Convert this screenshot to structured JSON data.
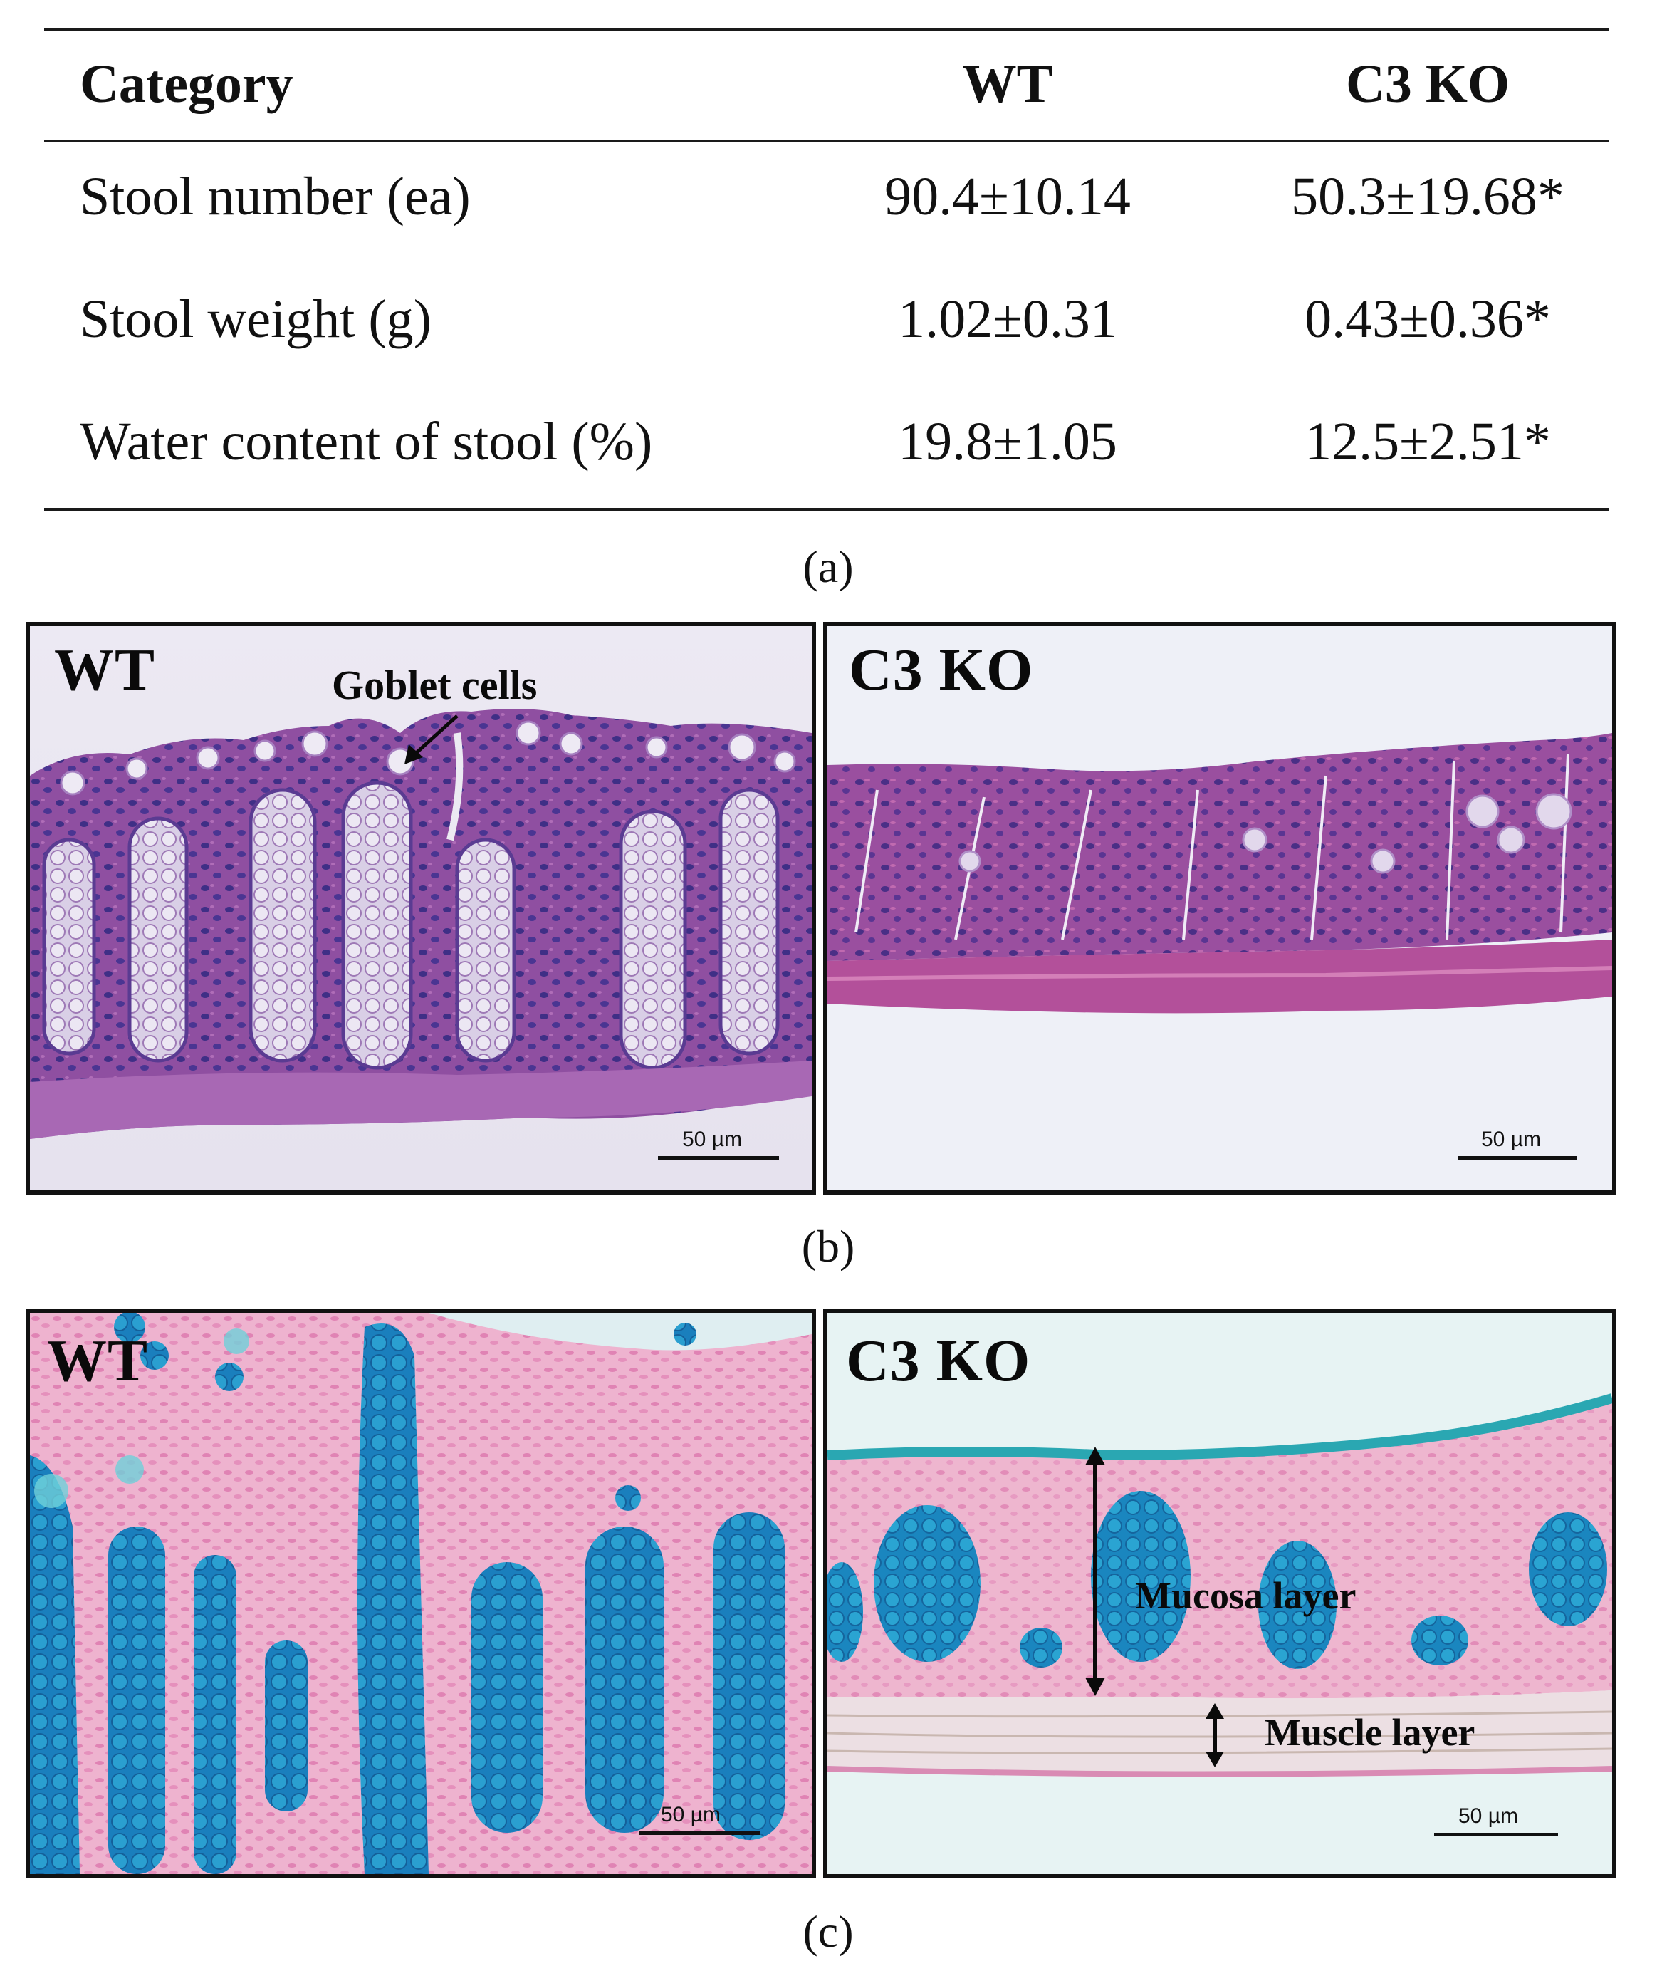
{
  "table": {
    "headers": [
      "Category",
      "WT",
      "C3 KO"
    ],
    "rows": [
      [
        "Stool number (ea)",
        "90.4±10.14",
        "50.3±19.68*"
      ],
      [
        "Stool weight (g)",
        "1.02±0.31",
        "0.43±0.36*"
      ],
      [
        "Water content of stool (%)",
        "19.8±1.05",
        "12.5±2.51*"
      ]
    ]
  },
  "captions": {
    "a": "(a)",
    "b": "(b)",
    "c": "(c)"
  },
  "panel_b": {
    "left_label": "WT",
    "right_label": "C3 KO",
    "annotation": "Goblet cells",
    "scale_left": "50 µm",
    "scale_right": "50 µm"
  },
  "panel_c": {
    "left_label": "WT",
    "right_label": "C3 KO",
    "mucosa_label": "Mucosa layer",
    "muscle_label": "Muscle layer",
    "scale_left": "50 µm",
    "scale_right": "50 µm"
  },
  "colors": {
    "he_tissue": "#8e4a9c",
    "he_nuclei": "#3b2d7e",
    "ab_blue": "#1f8fc4",
    "ab_pink": "#e9a6c6"
  }
}
